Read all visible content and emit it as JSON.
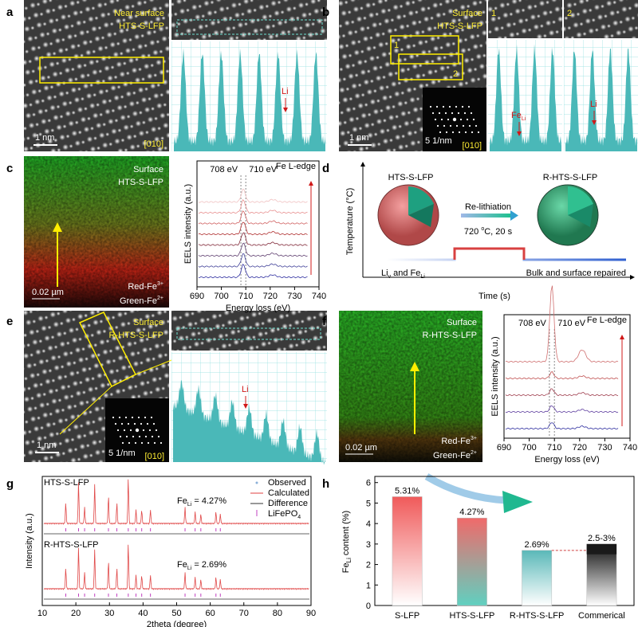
{
  "panels": {
    "a": {
      "label": "a",
      "title1": "Near surface",
      "title2": "HTS-S-LFP",
      "scale": "1 nm",
      "zone": "[010]",
      "marker": "Li"
    },
    "b": {
      "label": "b",
      "title1": "Surface",
      "title2": "HTS-S-LFP",
      "box1": "1",
      "box2": "2",
      "scale": "1 nm",
      "fft_scale": "5 1/nm",
      "zone": "[010]",
      "profile1": "1",
      "profile2": "2",
      "marker1_main": "Fe",
      "marker1_sub": "Li",
      "marker2": "Li"
    },
    "c": {
      "label": "c",
      "title1": "Surface",
      "title2": "HTS-S-LFP",
      "scale": "0.02 µm",
      "red": "Red-Fe",
      "red_sup": "3+",
      "green": "Green-Fe",
      "green_sup": "2+"
    },
    "d": {
      "label": "d",
      "left": "HTS-S-LFP",
      "right": "R-HTS-S-LFP",
      "process": "Re-lithiation",
      "condition_main": "720 ",
      "condition_sup": "o",
      "condition_rest": "C, 20 s",
      "y_label": "Temperature (°C)",
      "x_label": "Time (s)",
      "defect_a_main": "Li",
      "defect_a_sub": "v",
      "defect_mid": " and Fe",
      "defect_b_sub": "Li",
      "repaired": "Bulk and surface repaired"
    },
    "e": {
      "label": "e",
      "title1": "Surface",
      "title2": "R-HTS-S-LFP",
      "scale": "1 nm",
      "fft_scale": "5 1/nm",
      "zone": "[010]",
      "marker": "Li"
    },
    "f": {
      "label": "f",
      "title1": "Surface",
      "title2": "R-HTS-S-LFP",
      "scale": "0.02 µm",
      "red": "Red-Fe",
      "red_sup": "3+",
      "green": "Green-Fe",
      "green_sup": "2+"
    },
    "g": {
      "label": "g",
      "top": "HTS-S-LFP",
      "bottom": "R-HTS-S-LFP",
      "fe_main": "Fe",
      "fe_sub": "Li",
      "top_value": " = 4.27%",
      "bottom_value": " = 2.69%",
      "legend": [
        "Observed",
        "Calculated",
        "Difference",
        "LiFePO"
      ],
      "legend_sub": "4"
    },
    "h": {
      "label": "h"
    }
  },
  "chart_data": [
    {
      "type": "line",
      "title": "Fe L-edge",
      "x_label": "Energy loss (eV)",
      "y_label": "EELS intensity (a.u.)",
      "xlim": [
        690,
        740
      ],
      "xticks": [
        690,
        700,
        710,
        720,
        730,
        740
      ],
      "reference_lines": [
        {
          "value": 708,
          "label": "708 eV"
        },
        {
          "value": 710,
          "label": "710 eV"
        }
      ]
    },
    {
      "type": "line",
      "title": "Fe L-edge",
      "x_label": "Energy loss (eV)",
      "y_label": "EELS intensity (a.u.)",
      "xlim": [
        690,
        740
      ],
      "xticks": [
        690,
        700,
        710,
        720,
        730,
        740
      ],
      "reference_lines": [
        {
          "value": 708,
          "label": "708 eV"
        },
        {
          "value": 710,
          "label": "710 eV"
        }
      ]
    },
    {
      "type": "line",
      "x_label": "2theta (degree)",
      "y_label": "Intensity (a.u.)",
      "xlim": [
        10,
        90
      ],
      "xticks": [
        10,
        20,
        30,
        40,
        50,
        60,
        70,
        80,
        90
      ]
    },
    {
      "type": "bar",
      "y_label_main": "Fe",
      "y_label_sub": "Li",
      "y_label_rest": " content (%)",
      "categories": [
        "S-LFP",
        "HTS-S-LFP",
        "R-HTS-S-LFP",
        "Commerical"
      ],
      "values": [
        5.31,
        4.27,
        2.69,
        3
      ],
      "low": [
        null,
        null,
        null,
        2.5
      ],
      "value_labels": [
        "5.31%",
        "4.27%",
        "2.69%",
        "2.5-3%"
      ],
      "ylim": [
        0,
        6.3
      ],
      "yticks": [
        0,
        1,
        2,
        3,
        4,
        5,
        6
      ]
    }
  ]
}
